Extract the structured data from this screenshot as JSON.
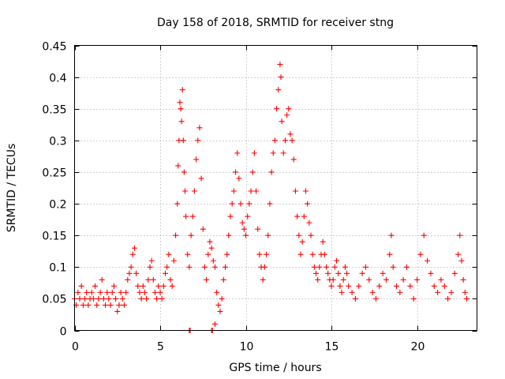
{
  "chart_data": {
    "type": "scatter",
    "title": "Day 158 of 2018, SRMTID for receiver stng",
    "xlabel": "GPS time / hours",
    "ylabel": "SRMTID / TECUs",
    "xlim": [
      0,
      23.5
    ],
    "ylim": [
      0,
      0.45
    ],
    "xticks": [
      0,
      5,
      10,
      15,
      20
    ],
    "xtick_labels": [
      "0",
      "5",
      "10",
      "15",
      "20"
    ],
    "yticks": [
      0,
      0.05,
      0.1,
      0.15,
      0.2,
      0.25,
      0.3,
      0.35,
      0.4,
      0.45
    ],
    "ytick_labels": [
      "0",
      "0.05",
      "0.1",
      "0.15",
      "0.2",
      "0.25",
      "0.3",
      "0.35",
      "0.4",
      "0.45"
    ],
    "grid": true,
    "marker": "+",
    "marker_color": "#ff0000",
    "series": [
      {
        "name": "SRMTID",
        "points": [
          [
            0.0,
            0.05
          ],
          [
            0.1,
            0.04
          ],
          [
            0.2,
            0.06
          ],
          [
            0.3,
            0.05
          ],
          [
            0.4,
            0.07
          ],
          [
            0.5,
            0.04
          ],
          [
            0.6,
            0.05
          ],
          [
            0.7,
            0.06
          ],
          [
            0.8,
            0.04
          ],
          [
            0.9,
            0.05
          ],
          [
            1.0,
            0.06
          ],
          [
            1.1,
            0.05
          ],
          [
            1.2,
            0.07
          ],
          [
            1.3,
            0.04
          ],
          [
            1.4,
            0.05
          ],
          [
            1.5,
            0.06
          ],
          [
            1.6,
            0.08
          ],
          [
            1.7,
            0.05
          ],
          [
            1.8,
            0.04
          ],
          [
            1.9,
            0.06
          ],
          [
            2.0,
            0.05
          ],
          [
            2.1,
            0.04
          ],
          [
            2.2,
            0.06
          ],
          [
            2.3,
            0.07
          ],
          [
            2.4,
            0.05
          ],
          [
            2.5,
            0.03
          ],
          [
            2.6,
            0.04
          ],
          [
            2.7,
            0.06
          ],
          [
            2.8,
            0.05
          ],
          [
            2.9,
            0.04
          ],
          [
            3.0,
            0.06
          ],
          [
            3.1,
            0.08
          ],
          [
            3.2,
            0.09
          ],
          [
            3.3,
            0.1
          ],
          [
            3.4,
            0.12
          ],
          [
            3.5,
            0.13
          ],
          [
            3.6,
            0.09
          ],
          [
            3.7,
            0.07
          ],
          [
            3.8,
            0.06
          ],
          [
            3.9,
            0.05
          ],
          [
            4.0,
            0.07
          ],
          [
            4.1,
            0.06
          ],
          [
            4.2,
            0.05
          ],
          [
            4.3,
            0.08
          ],
          [
            4.4,
            0.1
          ],
          [
            4.5,
            0.11
          ],
          [
            4.6,
            0.08
          ],
          [
            4.7,
            0.06
          ],
          [
            4.8,
            0.05
          ],
          [
            4.9,
            0.07
          ],
          [
            5.0,
            0.06
          ],
          [
            5.1,
            0.05
          ],
          [
            5.2,
            0.07
          ],
          [
            5.3,
            0.09
          ],
          [
            5.4,
            0.1
          ],
          [
            5.5,
            0.12
          ],
          [
            5.6,
            0.08
          ],
          [
            5.7,
            0.07
          ],
          [
            5.8,
            0.11
          ],
          [
            5.9,
            0.15
          ],
          [
            6.0,
            0.2
          ],
          [
            6.05,
            0.26
          ],
          [
            6.1,
            0.3
          ],
          [
            6.15,
            0.36
          ],
          [
            6.2,
            0.35
          ],
          [
            6.25,
            0.33
          ],
          [
            6.3,
            0.38
          ],
          [
            6.35,
            0.3
          ],
          [
            6.4,
            0.25
          ],
          [
            6.45,
            0.22
          ],
          [
            6.5,
            0.18
          ],
          [
            6.6,
            0.12
          ],
          [
            6.7,
            0.1
          ],
          [
            6.8,
            0.15
          ],
          [
            6.9,
            0.18
          ],
          [
            7.0,
            0.22
          ],
          [
            7.1,
            0.27
          ],
          [
            7.2,
            0.3
          ],
          [
            7.3,
            0.32
          ],
          [
            7.4,
            0.24
          ],
          [
            7.5,
            0.16
          ],
          [
            7.6,
            0.1
          ],
          [
            7.7,
            0.08
          ],
          [
            7.8,
            0.12
          ],
          [
            7.9,
            0.14
          ],
          [
            8.0,
            0.13
          ],
          [
            8.1,
            0.11
          ],
          [
            8.2,
            0.1
          ],
          [
            8.3,
            0.06
          ],
          [
            8.4,
            0.04
          ],
          [
            8.5,
            0.03
          ],
          [
            8.6,
            0.05
          ],
          [
            8.7,
            0.08
          ],
          [
            8.8,
            0.1
          ],
          [
            8.9,
            0.12
          ],
          [
            9.0,
            0.15
          ],
          [
            9.1,
            0.18
          ],
          [
            9.2,
            0.2
          ],
          [
            9.3,
            0.22
          ],
          [
            9.4,
            0.25
          ],
          [
            9.5,
            0.28
          ],
          [
            9.6,
            0.24
          ],
          [
            9.7,
            0.2
          ],
          [
            9.8,
            0.17
          ],
          [
            9.9,
            0.16
          ],
          [
            10.0,
            0.15
          ],
          [
            10.1,
            0.18
          ],
          [
            10.2,
            0.2
          ],
          [
            10.3,
            0.22
          ],
          [
            10.4,
            0.25
          ],
          [
            10.5,
            0.28
          ],
          [
            10.6,
            0.22
          ],
          [
            10.7,
            0.16
          ],
          [
            10.8,
            0.12
          ],
          [
            10.9,
            0.1
          ],
          [
            11.0,
            0.08
          ],
          [
            11.1,
            0.1
          ],
          [
            11.2,
            0.12
          ],
          [
            11.3,
            0.15
          ],
          [
            11.4,
            0.2
          ],
          [
            11.5,
            0.25
          ],
          [
            11.6,
            0.28
          ],
          [
            11.7,
            0.3
          ],
          [
            11.8,
            0.35
          ],
          [
            11.9,
            0.38
          ],
          [
            12.0,
            0.42
          ],
          [
            12.05,
            0.4
          ],
          [
            12.1,
            0.33
          ],
          [
            12.2,
            0.28
          ],
          [
            12.3,
            0.3
          ],
          [
            12.4,
            0.34
          ],
          [
            12.5,
            0.35
          ],
          [
            12.6,
            0.31
          ],
          [
            12.7,
            0.3
          ],
          [
            12.8,
            0.27
          ],
          [
            12.9,
            0.22
          ],
          [
            13.0,
            0.18
          ],
          [
            13.1,
            0.15
          ],
          [
            13.2,
            0.12
          ],
          [
            13.3,
            0.14
          ],
          [
            13.4,
            0.18
          ],
          [
            13.5,
            0.22
          ],
          [
            13.6,
            0.2
          ],
          [
            13.7,
            0.17
          ],
          [
            13.8,
            0.15
          ],
          [
            13.9,
            0.12
          ],
          [
            14.0,
            0.1
          ],
          [
            14.1,
            0.09
          ],
          [
            14.2,
            0.08
          ],
          [
            14.3,
            0.1
          ],
          [
            14.4,
            0.12
          ],
          [
            14.5,
            0.14
          ],
          [
            14.6,
            0.12
          ],
          [
            14.7,
            0.1
          ],
          [
            14.8,
            0.09
          ],
          [
            14.9,
            0.08
          ],
          [
            15.0,
            0.07
          ],
          [
            15.1,
            0.08
          ],
          [
            15.2,
            0.1
          ],
          [
            15.3,
            0.11
          ],
          [
            15.4,
            0.09
          ],
          [
            15.5,
            0.07
          ],
          [
            15.6,
            0.06
          ],
          [
            15.7,
            0.08
          ],
          [
            15.8,
            0.1
          ],
          [
            15.9,
            0.09
          ],
          [
            16.0,
            0.07
          ],
          [
            16.2,
            0.06
          ],
          [
            16.4,
            0.05
          ],
          [
            16.6,
            0.07
          ],
          [
            16.8,
            0.09
          ],
          [
            17.0,
            0.1
          ],
          [
            17.2,
            0.08
          ],
          [
            17.4,
            0.06
          ],
          [
            17.6,
            0.05
          ],
          [
            17.8,
            0.07
          ],
          [
            18.0,
            0.09
          ],
          [
            18.2,
            0.08
          ],
          [
            18.4,
            0.12
          ],
          [
            18.5,
            0.15
          ],
          [
            18.6,
            0.1
          ],
          [
            18.8,
            0.07
          ],
          [
            19.0,
            0.06
          ],
          [
            19.2,
            0.08
          ],
          [
            19.4,
            0.1
          ],
          [
            19.6,
            0.07
          ],
          [
            19.8,
            0.05
          ],
          [
            20.0,
            0.08
          ],
          [
            20.2,
            0.12
          ],
          [
            20.4,
            0.15
          ],
          [
            20.6,
            0.11
          ],
          [
            20.8,
            0.09
          ],
          [
            21.0,
            0.07
          ],
          [
            21.2,
            0.06
          ],
          [
            21.4,
            0.08
          ],
          [
            21.6,
            0.07
          ],
          [
            21.8,
            0.05
          ],
          [
            22.0,
            0.06
          ],
          [
            22.2,
            0.09
          ],
          [
            22.4,
            0.12
          ],
          [
            22.5,
            0.15
          ],
          [
            22.6,
            0.11
          ],
          [
            22.7,
            0.08
          ],
          [
            22.8,
            0.06
          ],
          [
            22.9,
            0.05
          ],
          [
            6.7,
            0.0
          ],
          [
            6.75,
            0.0
          ],
          [
            8.0,
            0.0
          ],
          [
            8.05,
            0.0
          ],
          [
            8.2,
            0.01
          ]
        ]
      }
    ]
  }
}
